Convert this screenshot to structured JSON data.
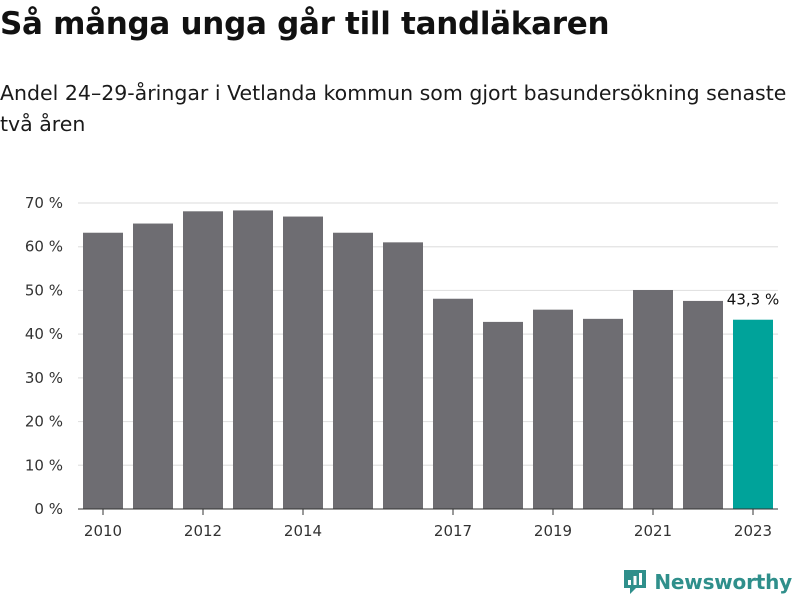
{
  "title": "Så många unga går till tandläkaren",
  "subtitle": "Andel 24–29-åringar i Vetlanda kommun som gjort basundersökning senaste två åren",
  "brand": {
    "name": "Newsworthy",
    "icon": "newsworthy-logo-icon",
    "color": "#2f8f8b"
  },
  "colors": {
    "bar": "#6e6d72",
    "highlight": "#00a39a",
    "grid": "#e2e2e2",
    "axis": "#333333"
  },
  "chart_data": {
    "type": "bar",
    "title": "Så många unga går till tandläkaren",
    "subtitle": "Andel 24–29-åringar i Vetlanda kommun som gjort basundersökning senaste två åren",
    "xlabel": "",
    "ylabel": "",
    "categories": [
      2010,
      2011,
      2012,
      2013,
      2014,
      2015,
      2016,
      2017,
      2018,
      2019,
      2020,
      2021,
      2022,
      2023
    ],
    "values": [
      63.2,
      65.3,
      68.1,
      68.3,
      66.9,
      63.2,
      61.0,
      48.1,
      42.8,
      45.6,
      43.5,
      50.1,
      47.6,
      43.3
    ],
    "highlight_index": 13,
    "value_label": "43,3 %",
    "x_tick_labels": [
      {
        "value": 2010,
        "label": "2010"
      },
      {
        "value": 2012,
        "label": "2012"
      },
      {
        "value": 2014,
        "label": "2014"
      },
      {
        "value": 2017,
        "label": "2017"
      },
      {
        "value": 2019,
        "label": "2019"
      },
      {
        "value": 2021,
        "label": "2021"
      },
      {
        "value": 2023,
        "label": "2023"
      }
    ],
    "y_ticks": [
      0,
      10,
      20,
      30,
      40,
      50,
      60,
      70
    ],
    "y_tick_labels": [
      "0 %",
      "10 %",
      "20 %",
      "30 %",
      "40 %",
      "50 %",
      "60 %",
      "70 %"
    ],
    "ylim": [
      0,
      70
    ],
    "grid": true,
    "legend": false
  }
}
